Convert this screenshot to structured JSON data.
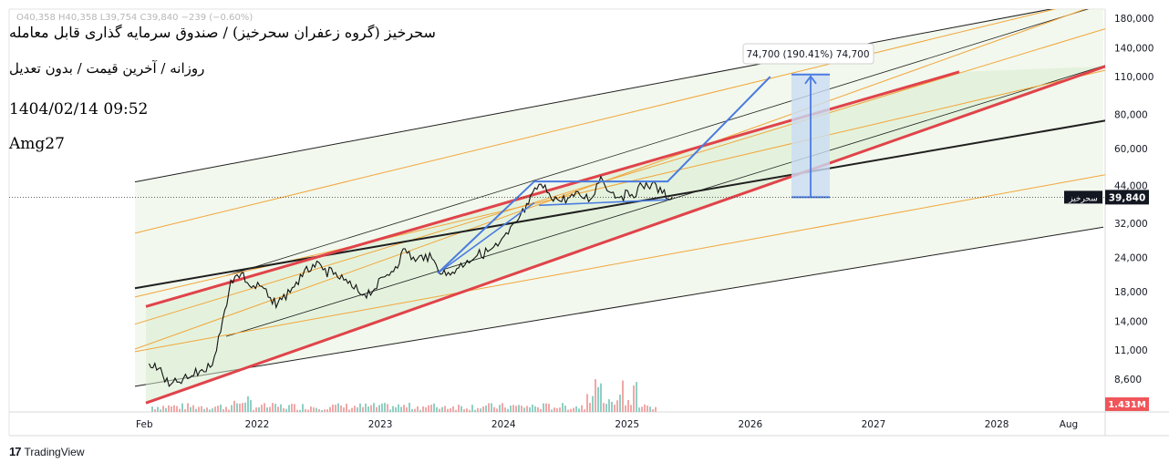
{
  "header": {
    "ohlc_line": "O40,358  H40,358  L39,754  C39,840  −239 (−0.60%)",
    "title": "سحرخیز (گروه زعفران سحرخیز) / صندوق سرمایه گذاری قابل معامله",
    "subtitle": "روزانه / آخرین قیمت / بدون تعدیل",
    "datetime": "1404/02/14 09:52",
    "author": "Amg27"
  },
  "branding": {
    "logo": "17",
    "name": "TradingView"
  },
  "colors": {
    "channel_red": "#e0434a",
    "channel_fill": "#e8f3df",
    "orange_line": "#f2a53a",
    "black_line": "#1f1f1f",
    "blue_draw": "#4a7be0",
    "projection_fill": "#c9dcf2",
    "volume_up": "#8fcfc3",
    "volume_down": "#f1a7a7",
    "volume_badge": "#f0555a",
    "price_badge": "#131722"
  },
  "chart_data": {
    "type": "line",
    "scale": "log",
    "x_axis_labels": [
      "Feb",
      "2022",
      "2023",
      "2024",
      "2025",
      "2026",
      "2027",
      "2028",
      "Aug"
    ],
    "y_axis_ticks": [
      "180,000",
      "140,000",
      "110,000",
      "80,000",
      "60,000",
      "44,000",
      "32,000",
      "24,000",
      "18,000",
      "14,000",
      "11,000",
      "8,600"
    ],
    "y_tick_values": [
      180000,
      140000,
      110000,
      80000,
      60000,
      44000,
      32000,
      24000,
      18000,
      14000,
      11000,
      8600
    ],
    "last_price_label": "39,840",
    "last_price": 39840,
    "symbol_label": "سحرخیز",
    "volume_label": "1.431M",
    "projection_label": "74,700 (190.41%) 74,700",
    "projection_target": 112000,
    "series": [
      {
        "values": [
          [
            "2021-02",
            9800
          ],
          [
            "2021-03",
            9400
          ],
          [
            "2021-04",
            8100
          ],
          [
            "2021-05",
            8400
          ],
          [
            "2021-06",
            8700
          ],
          [
            "2021-07",
            9200
          ],
          [
            "2021-08",
            9500
          ],
          [
            "2021-09",
            12800
          ],
          [
            "2021-10",
            19800
          ],
          [
            "2021-11",
            21000
          ],
          [
            "2021-12",
            18600
          ],
          [
            "2022-01",
            18800
          ],
          [
            "2022-02",
            16200
          ],
          [
            "2022-03",
            16800
          ],
          [
            "2022-04",
            18600
          ],
          [
            "2022-05",
            20400
          ],
          [
            "2022-06",
            22600
          ],
          [
            "2022-07",
            21600
          ],
          [
            "2022-08",
            20800
          ],
          [
            "2022-09",
            19800
          ],
          [
            "2022-10",
            18400
          ],
          [
            "2022-11",
            17600
          ],
          [
            "2022-12",
            18400
          ],
          [
            "2023-01",
            20400
          ],
          [
            "2023-02",
            22200
          ],
          [
            "2023-03",
            25800
          ],
          [
            "2023-04",
            23200
          ],
          [
            "2023-05",
            24600
          ],
          [
            "2023-06",
            22600
          ],
          [
            "2023-07",
            20600
          ],
          [
            "2023-08",
            21800
          ],
          [
            "2023-09",
            23400
          ],
          [
            "2023-10",
            24400
          ],
          [
            "2023-11",
            25200
          ],
          [
            "2023-12",
            26400
          ],
          [
            "2024-01",
            29200
          ],
          [
            "2024-02",
            33200
          ],
          [
            "2024-03",
            37600
          ],
          [
            "2024-04",
            44400
          ],
          [
            "2024-05",
            41200
          ],
          [
            "2024-06",
            38600
          ],
          [
            "2024-07",
            39800
          ],
          [
            "2024-08",
            40400
          ],
          [
            "2024-09",
            39200
          ],
          [
            "2024-10",
            47400
          ],
          [
            "2024-11",
            41400
          ],
          [
            "2024-12",
            40200
          ],
          [
            "2025-01",
            40800
          ],
          [
            "2025-02",
            43800
          ],
          [
            "2025-03",
            44600
          ],
          [
            "2025-04",
            41200
          ],
          [
            "2025-05",
            39840
          ]
        ]
      }
    ]
  }
}
